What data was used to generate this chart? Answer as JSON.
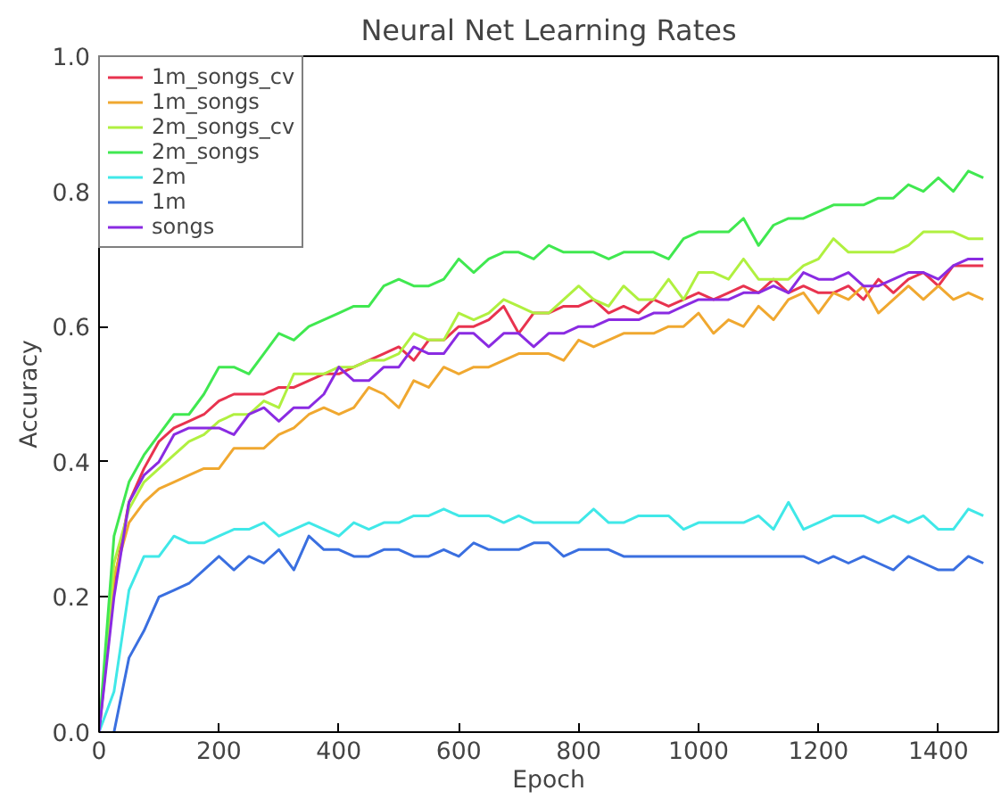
{
  "chart_data": {
    "type": "line",
    "title": "Neural Net Learning Rates",
    "xlabel": "Epoch",
    "ylabel": "Accuracy",
    "x": [
      0,
      25,
      50,
      75,
      100,
      125,
      150,
      175,
      200,
      225,
      250,
      275,
      300,
      325,
      350,
      375,
      400,
      425,
      450,
      475,
      500,
      525,
      550,
      575,
      600,
      625,
      650,
      675,
      700,
      725,
      750,
      775,
      800,
      825,
      850,
      875,
      900,
      925,
      950,
      975,
      1000,
      1025,
      1050,
      1075,
      1100,
      1125,
      1150,
      1175,
      1200,
      1225,
      1250,
      1275,
      1300,
      1325,
      1350,
      1375,
      1400,
      1425,
      1450,
      1475
    ],
    "series": [
      {
        "name": "1m_songs_cv",
        "color": "#e8334f",
        "values": [
          0,
          0.22,
          0.34,
          0.39,
          0.43,
          0.45,
          0.46,
          0.47,
          0.49,
          0.5,
          0.5,
          0.5,
          0.51,
          0.51,
          0.52,
          0.53,
          0.53,
          0.54,
          0.55,
          0.56,
          0.57,
          0.55,
          0.58,
          0.58,
          0.6,
          0.6,
          0.61,
          0.63,
          0.59,
          0.62,
          0.62,
          0.63,
          0.63,
          0.64,
          0.62,
          0.63,
          0.62,
          0.64,
          0.63,
          0.64,
          0.65,
          0.64,
          0.65,
          0.66,
          0.65,
          0.67,
          0.65,
          0.66,
          0.65,
          0.65,
          0.66,
          0.64,
          0.67,
          0.65,
          0.67,
          0.68,
          0.66,
          0.69,
          0.69,
          0.69
        ]
      },
      {
        "name": "1m_songs",
        "color": "#f0a830",
        "values": [
          0,
          0.23,
          0.31,
          0.34,
          0.36,
          0.37,
          0.38,
          0.39,
          0.39,
          0.42,
          0.42,
          0.42,
          0.44,
          0.45,
          0.47,
          0.48,
          0.47,
          0.48,
          0.51,
          0.5,
          0.48,
          0.52,
          0.51,
          0.54,
          0.53,
          0.54,
          0.54,
          0.55,
          0.56,
          0.56,
          0.56,
          0.55,
          0.58,
          0.57,
          0.58,
          0.59,
          0.59,
          0.59,
          0.6,
          0.6,
          0.62,
          0.59,
          0.61,
          0.6,
          0.63,
          0.61,
          0.64,
          0.65,
          0.62,
          0.65,
          0.64,
          0.66,
          0.62,
          0.64,
          0.66,
          0.64,
          0.66,
          0.64,
          0.65,
          0.64
        ]
      },
      {
        "name": "2m_songs_cv",
        "color": "#b0f040",
        "values": [
          0,
          0.25,
          0.33,
          0.37,
          0.39,
          0.41,
          0.43,
          0.44,
          0.46,
          0.47,
          0.47,
          0.49,
          0.48,
          0.53,
          0.53,
          0.53,
          0.54,
          0.54,
          0.55,
          0.55,
          0.56,
          0.59,
          0.58,
          0.58,
          0.62,
          0.61,
          0.62,
          0.64,
          0.63,
          0.62,
          0.62,
          0.64,
          0.66,
          0.64,
          0.63,
          0.66,
          0.64,
          0.64,
          0.67,
          0.64,
          0.68,
          0.68,
          0.67,
          0.7,
          0.67,
          0.67,
          0.67,
          0.69,
          0.7,
          0.73,
          0.71,
          0.71,
          0.71,
          0.71,
          0.72,
          0.74,
          0.74,
          0.74,
          0.73,
          0.73
        ]
      },
      {
        "name": "2m_songs",
        "color": "#40e850",
        "values": [
          0,
          0.29,
          0.37,
          0.41,
          0.44,
          0.47,
          0.47,
          0.5,
          0.54,
          0.54,
          0.53,
          0.56,
          0.59,
          0.58,
          0.6,
          0.61,
          0.62,
          0.63,
          0.63,
          0.66,
          0.67,
          0.66,
          0.66,
          0.67,
          0.7,
          0.68,
          0.7,
          0.71,
          0.71,
          0.7,
          0.72,
          0.71,
          0.71,
          0.71,
          0.7,
          0.71,
          0.71,
          0.71,
          0.7,
          0.73,
          0.74,
          0.74,
          0.74,
          0.76,
          0.72,
          0.75,
          0.76,
          0.76,
          0.77,
          0.78,
          0.78,
          0.78,
          0.79,
          0.79,
          0.81,
          0.8,
          0.82,
          0.8,
          0.83,
          0.82
        ]
      },
      {
        "name": "2m",
        "color": "#40e8e8",
        "values": [
          0,
          0.06,
          0.21,
          0.26,
          0.26,
          0.29,
          0.28,
          0.28,
          0.29,
          0.3,
          0.3,
          0.31,
          0.29,
          0.3,
          0.31,
          0.3,
          0.29,
          0.31,
          0.3,
          0.31,
          0.31,
          0.32,
          0.32,
          0.33,
          0.32,
          0.32,
          0.32,
          0.31,
          0.32,
          0.31,
          0.31,
          0.31,
          0.31,
          0.33,
          0.31,
          0.31,
          0.32,
          0.32,
          0.32,
          0.3,
          0.31,
          0.31,
          0.31,
          0.31,
          0.32,
          0.3,
          0.34,
          0.3,
          0.31,
          0.32,
          0.32,
          0.32,
          0.31,
          0.32,
          0.31,
          0.32,
          0.3,
          0.3,
          0.33,
          0.32
        ]
      },
      {
        "name": "1m",
        "color": "#3a6fe0",
        "values": [
          null,
          0.0,
          0.11,
          0.15,
          0.2,
          0.21,
          0.22,
          0.24,
          0.26,
          0.24,
          0.26,
          0.25,
          0.27,
          0.24,
          0.29,
          0.27,
          0.27,
          0.26,
          0.26,
          0.27,
          0.27,
          0.26,
          0.26,
          0.27,
          0.26,
          0.28,
          0.27,
          0.27,
          0.27,
          0.28,
          0.28,
          0.26,
          0.27,
          0.27,
          0.27,
          0.26,
          0.26,
          0.26,
          0.26,
          0.26,
          0.26,
          0.26,
          0.26,
          0.26,
          0.26,
          0.26,
          0.26,
          0.26,
          0.25,
          0.26,
          0.25,
          0.26,
          0.25,
          0.24,
          0.26,
          0.25,
          0.24,
          0.24,
          0.26,
          0.25
        ]
      },
      {
        "name": "songs",
        "color": "#8a2be2",
        "values": [
          0,
          0.2,
          0.34,
          0.38,
          0.4,
          0.44,
          0.45,
          0.45,
          0.45,
          0.44,
          0.47,
          0.48,
          0.46,
          0.48,
          0.48,
          0.5,
          0.54,
          0.52,
          0.52,
          0.54,
          0.54,
          0.57,
          0.56,
          0.56,
          0.59,
          0.59,
          0.57,
          0.59,
          0.59,
          0.57,
          0.59,
          0.59,
          0.6,
          0.6,
          0.61,
          0.61,
          0.61,
          0.62,
          0.62,
          0.63,
          0.64,
          0.64,
          0.64,
          0.65,
          0.65,
          0.66,
          0.65,
          0.68,
          0.67,
          0.67,
          0.68,
          0.66,
          0.66,
          0.67,
          0.68,
          0.68,
          0.67,
          0.69,
          0.7,
          0.7
        ]
      }
    ],
    "xlim": [
      0,
      1500
    ],
    "xticks": [
      0,
      200,
      400,
      600,
      800,
      1000,
      1200,
      1400
    ],
    "ylim": [
      0,
      1.0
    ],
    "yticks": [
      {
        "value": 0,
        "label": "0.0"
      },
      {
        "value": 0.2,
        "label": "0.2"
      },
      {
        "value": 0.4,
        "label": "0.4"
      },
      {
        "value": 0.6,
        "label": "0.6"
      },
      {
        "value": 0.8,
        "label": "0.8"
      },
      {
        "value": 1.0,
        "label": "1.0"
      }
    ],
    "grid": false,
    "legend": "top left",
    "line_style": "solid"
  }
}
